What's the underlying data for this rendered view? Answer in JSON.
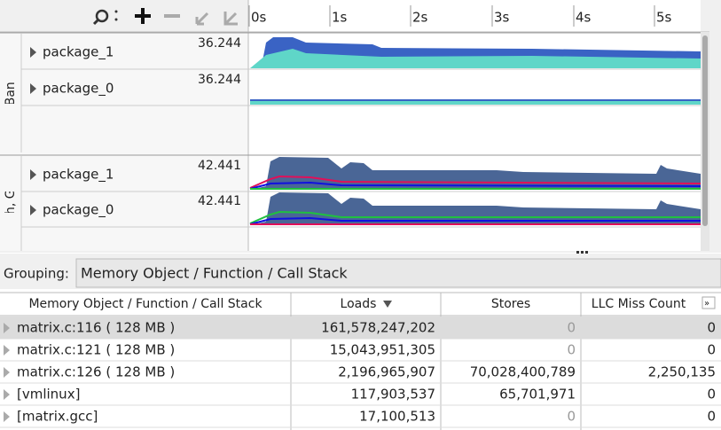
{
  "timeline": {
    "ticks": [
      "0s",
      "1s",
      "2s",
      "3s",
      "4s",
      "5s"
    ],
    "groups": [
      {
        "label": "DRAM Bandwidth",
        "rows": [
          {
            "name": "package_1",
            "max": "36.244"
          },
          {
            "name": "package_0",
            "max": "36.244"
          }
        ]
      },
      {
        "label": "dwidth, GB/sec",
        "rows": [
          {
            "name": "package_1",
            "max": "42.441"
          },
          {
            "name": "package_0",
            "max": "42.441"
          }
        ]
      }
    ]
  },
  "grouping": {
    "label": "Grouping:",
    "value": "Memory Object / Function / Call Stack"
  },
  "table": {
    "columns": [
      "Memory Object / Function / Call Stack",
      "Loads",
      "Stores",
      "LLC Miss Count"
    ],
    "rows": [
      [
        "matrix.c:116 ( 128 MB )",
        "161,578,247,202",
        "0",
        "0"
      ],
      [
        "matrix.c:121 ( 128 MB )",
        "15,043,951,305",
        "0",
        "0"
      ],
      [
        "matrix.c:126 ( 128 MB )",
        "2,196,965,907",
        "70,028,400,789",
        "2,250,135"
      ],
      [
        "[vmlinux]",
        "117,903,537",
        "65,701,971",
        "0"
      ],
      [
        "[matrix.gcc]",
        "17,100,513",
        "0",
        "0"
      ]
    ]
  }
}
